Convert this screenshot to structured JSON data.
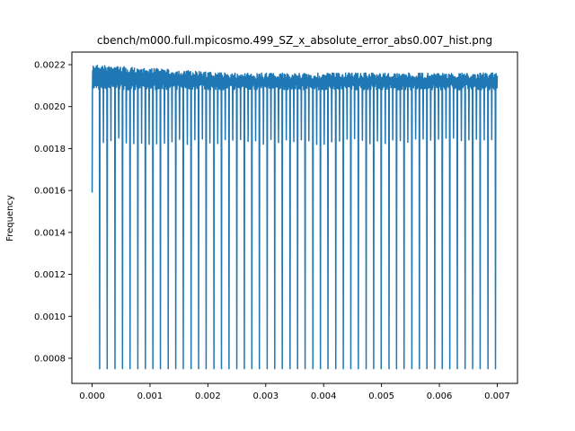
{
  "chart_data": {
    "type": "line",
    "title": "cbench/m000.full.mpicosmo.499_SZ_x_absolute_error_abs0.007_hist.png",
    "xlabel": "",
    "ylabel": "Frequency",
    "xlim": [
      -0.00035,
      0.00735
    ],
    "ylim": [
      0.00068,
      0.00226
    ],
    "grid": false,
    "x_ticks": [
      0.0,
      0.001,
      0.002,
      0.003,
      0.004,
      0.005,
      0.006,
      0.007
    ],
    "x_tick_labels": [
      "0.000",
      "0.001",
      "0.002",
      "0.003",
      "0.004",
      "0.005",
      "0.006",
      "0.007"
    ],
    "y_ticks": [
      0.0008,
      0.001,
      0.0012,
      0.0014,
      0.0016,
      0.0018,
      0.002,
      0.0022
    ],
    "y_tick_labels": [
      "0.0008",
      "0.0010",
      "0.0012",
      "0.0014",
      "0.0016",
      "0.0018",
      "0.0020",
      "0.0022"
    ],
    "series": [
      {
        "color": "#1f77b4",
        "x_start": 0.0,
        "x_end": 0.007,
        "start_value": 0.00159,
        "plateau_high_initial": 0.0022,
        "plateau_high_final": 0.00216,
        "plateau_low": 0.00208,
        "shallow_dip": 0.00182,
        "deep_dip": 0.00075,
        "deep_dip_count": 53,
        "first_deep_dip_x": 0.00013,
        "last_deep_dip_x": 0.00697
      }
    ]
  }
}
